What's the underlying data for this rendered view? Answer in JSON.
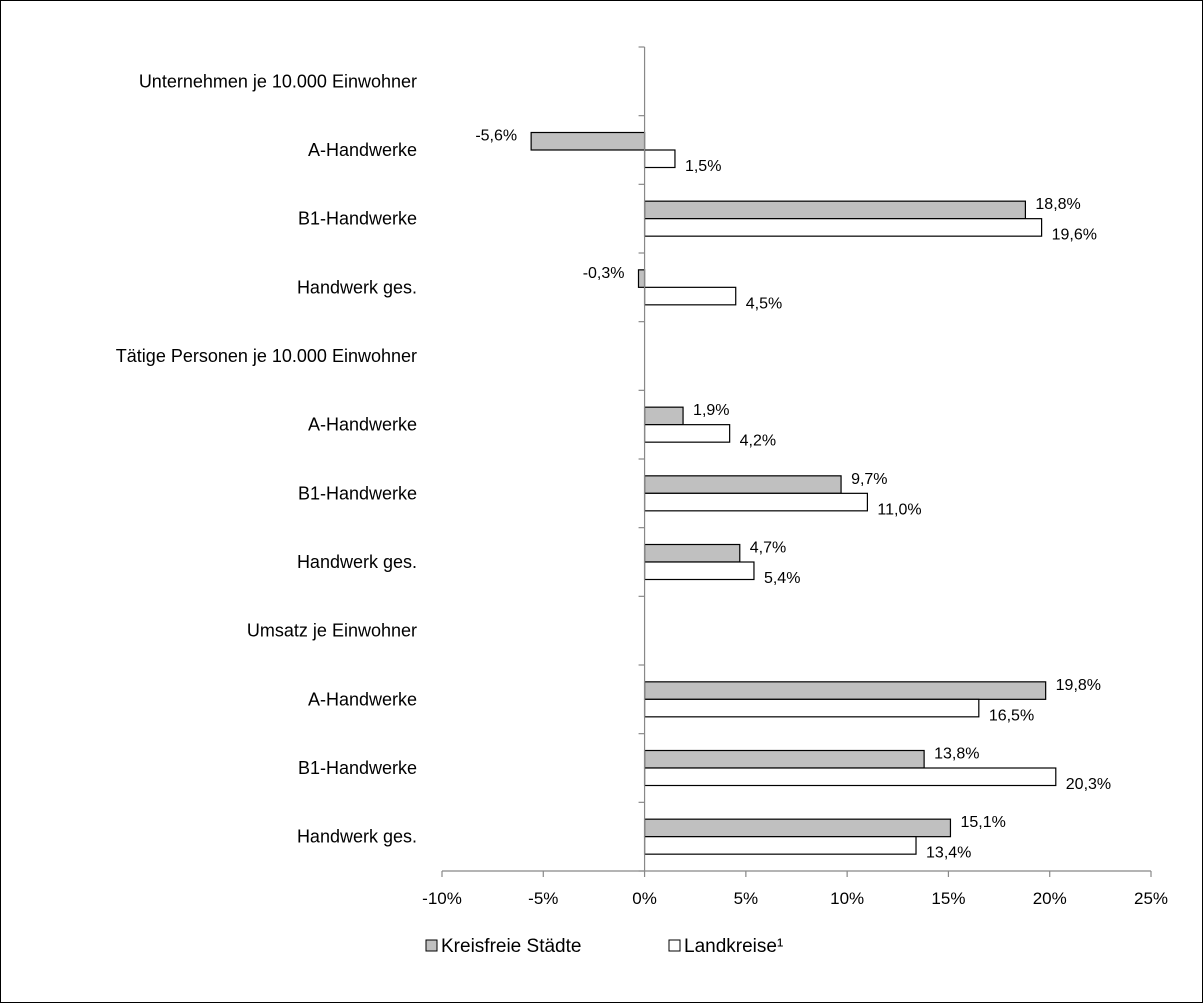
{
  "chart_data": {
    "type": "bar",
    "orientation": "horizontal",
    "categories": [
      "Unternehmen je 10.000 Einwohner",
      "A-Handwerke",
      "B1-Handwerke",
      "Handwerk ges.",
      "Tätige Personen je 10.000 Einwohner",
      "A-Handwerke",
      "B1-Handwerke",
      "Handwerk ges.",
      "Umsatz je Einwohner",
      "A-Handwerke",
      "B1-Handwerke",
      "Handwerk ges."
    ],
    "series": [
      {
        "name": "Kreisfreie Städte",
        "color": "#c0c0c0",
        "values": [
          null,
          -5.6,
          18.8,
          -0.3,
          null,
          1.9,
          9.7,
          4.7,
          null,
          19.8,
          13.8,
          15.1
        ],
        "labels": [
          "",
          "-5,6%",
          "18,8%",
          "-0,3%",
          "",
          "1,9%",
          "9,7%",
          "4,7%",
          "",
          "19,8%",
          "13,8%",
          "15,1%"
        ]
      },
      {
        "name": "Landkreise¹",
        "color": "#ffffff",
        "values": [
          null,
          1.5,
          19.6,
          4.5,
          null,
          4.2,
          11.0,
          5.4,
          null,
          16.5,
          20.3,
          13.4
        ],
        "labels": [
          "",
          "1,5%",
          "19,6%",
          "4,5%",
          "",
          "4,2%",
          "11,0%",
          "5,4%",
          "",
          "16,5%",
          "20,3%",
          "13,4%"
        ]
      }
    ],
    "xlim": [
      -10,
      25
    ],
    "xticks": [
      -10,
      -5,
      0,
      5,
      10,
      15,
      20,
      25
    ],
    "xtick_labels": [
      "-10%",
      "-5%",
      "0%",
      "5%",
      "10%",
      "15%",
      "20%",
      "25%"
    ],
    "grid": false,
    "legend_position": "bottom-center",
    "title": "",
    "xlabel": "",
    "ylabel": ""
  }
}
